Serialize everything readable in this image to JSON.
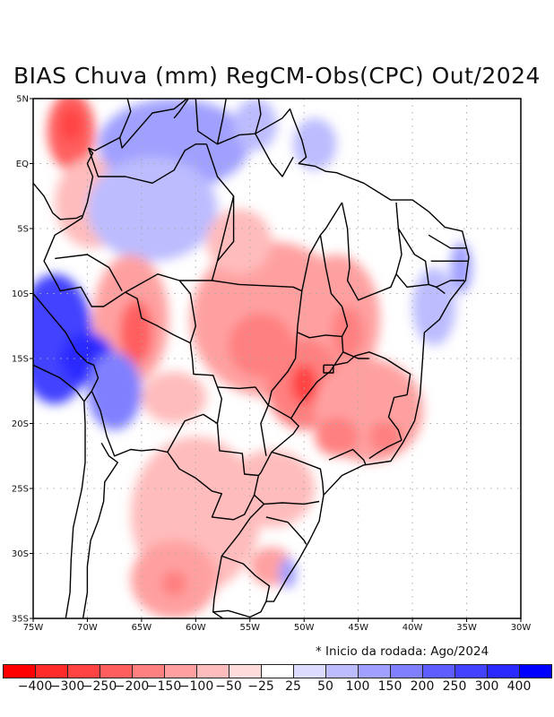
{
  "title": "BIAS Chuva (mm) RegCM-Obs(CPC) Out/2024",
  "footnote": "* Inicio da rodada: Ago/2024",
  "map": {
    "lon_range": [
      -75,
      -30
    ],
    "lat_range": [
      -35,
      5
    ],
    "lon_ticks": [
      {
        "value": -75,
        "label": "75W"
      },
      {
        "value": -70,
        "label": "70W"
      },
      {
        "value": -65,
        "label": "65W"
      },
      {
        "value": -60,
        "label": "60W"
      },
      {
        "value": -55,
        "label": "55W"
      },
      {
        "value": -50,
        "label": "50W"
      },
      {
        "value": -45,
        "label": "45W"
      },
      {
        "value": -40,
        "label": "40W"
      },
      {
        "value": -35,
        "label": "35W"
      },
      {
        "value": -30,
        "label": "30W"
      }
    ],
    "lat_ticks": [
      {
        "value": 5,
        "label": "5N"
      },
      {
        "value": 0,
        "label": "EQ"
      },
      {
        "value": -5,
        "label": "5S"
      },
      {
        "value": -10,
        "label": "10S"
      },
      {
        "value": -15,
        "label": "15S"
      },
      {
        "value": -20,
        "label": "20S"
      },
      {
        "value": -25,
        "label": "25S"
      },
      {
        "value": -30,
        "label": "30S"
      },
      {
        "value": -35,
        "label": "35S"
      }
    ],
    "grid": "dotted",
    "bias_features": [
      {
        "lon": -71.5,
        "lat": 2.5,
        "rx": 2.2,
        "ry": 3.0,
        "bias": -250
      },
      {
        "lon": -71.5,
        "lat": 3.0,
        "rx": 1.0,
        "ry": 1.3,
        "bias": -300
      },
      {
        "lon": -69.5,
        "lat": -3.0,
        "rx": 3.5,
        "ry": 3.5,
        "bias": -100
      },
      {
        "lon": -62,
        "lat": 1.5,
        "rx": 7,
        "ry": 3.5,
        "bias": 100
      },
      {
        "lon": -64,
        "lat": -3.5,
        "rx": 6,
        "ry": 4,
        "bias": 50
      },
      {
        "lon": -54.5,
        "lat": 3.0,
        "rx": 2,
        "ry": 2,
        "bias": 50
      },
      {
        "lon": -49,
        "lat": 1.5,
        "rx": 2,
        "ry": 2,
        "bias": 50
      },
      {
        "lon": -66,
        "lat": -12,
        "rx": 3.5,
        "ry": 5,
        "bias": -150
      },
      {
        "lon": -65.5,
        "lat": -13,
        "rx": 1.5,
        "ry": 2.5,
        "bias": -250
      },
      {
        "lon": -73,
        "lat": -13.5,
        "rx": 3.5,
        "ry": 5,
        "bias": 250
      },
      {
        "lon": -70,
        "lat": -15,
        "rx": 2.5,
        "ry": 2,
        "bias": 300
      },
      {
        "lon": -67.5,
        "lat": -17.5,
        "rx": 2.5,
        "ry": 3,
        "bias": 150
      },
      {
        "lon": -53,
        "lat": -12,
        "rx": 7.5,
        "ry": 6,
        "bias": -150
      },
      {
        "lon": -54,
        "lat": -14,
        "rx": 3,
        "ry": 2.5,
        "bias": -200
      },
      {
        "lon": -56,
        "lat": -6,
        "rx": 3,
        "ry": 2.5,
        "bias": -100
      },
      {
        "lon": -47,
        "lat": -12,
        "rx": 4,
        "ry": 5,
        "bias": -150
      },
      {
        "lon": -46,
        "lat": -13,
        "rx": 1.5,
        "ry": 2,
        "bias": -200
      },
      {
        "lon": -50,
        "lat": -17,
        "rx": 3.5,
        "ry": 3.5,
        "bias": -200
      },
      {
        "lon": -50,
        "lat": -17,
        "rx": 1.2,
        "ry": 1.5,
        "bias": -300
      },
      {
        "lon": -44,
        "lat": -19,
        "rx": 5,
        "ry": 4,
        "bias": -150
      },
      {
        "lon": -47,
        "lat": -21,
        "rx": 2,
        "ry": 1.5,
        "bias": -200
      },
      {
        "lon": -42.5,
        "lat": -21,
        "rx": 1.5,
        "ry": 1.2,
        "bias": -200
      },
      {
        "lon": -62,
        "lat": -18,
        "rx": 3,
        "ry": 2,
        "bias": -100
      },
      {
        "lon": -60,
        "lat": -27,
        "rx": 6,
        "ry": 6,
        "bias": -100
      },
      {
        "lon": -62,
        "lat": -32,
        "rx": 4,
        "ry": 3,
        "bias": -150
      },
      {
        "lon": -62,
        "lat": -32.3,
        "rx": 1.2,
        "ry": 1,
        "bias": -200
      },
      {
        "lon": -53,
        "lat": -25,
        "rx": 4,
        "ry": 3,
        "bias": -100
      },
      {
        "lon": -53,
        "lat": -31,
        "rx": 2,
        "ry": 1.5,
        "bias": -150
      },
      {
        "lon": -38,
        "lat": -11,
        "rx": 2,
        "ry": 3,
        "bias": 50
      },
      {
        "lon": -35.5,
        "lat": -8,
        "rx": 1,
        "ry": 2,
        "bias": 100
      },
      {
        "lon": -51.5,
        "lat": -31.5,
        "rx": 0.8,
        "ry": 1.2,
        "bias": 100
      }
    ]
  },
  "colorbar": {
    "labels": [
      "-400",
      "-300",
      "-250",
      "-200",
      "-150",
      "-100",
      "-50",
      "-25",
      "25",
      "50",
      "100",
      "150",
      "200",
      "250",
      "300",
      "400"
    ],
    "colors": [
      "#ff0000",
      "#ff2a2a",
      "#ff4242",
      "#ff5e5e",
      "#ff8080",
      "#ffa0a0",
      "#ffbcbc",
      "#ffdcdc",
      "#ffffff",
      "#dcdcff",
      "#bcbcff",
      "#a0a0ff",
      "#8080ff",
      "#5e5eff",
      "#4242ff",
      "#2a2aff",
      "#0000ff"
    ]
  }
}
